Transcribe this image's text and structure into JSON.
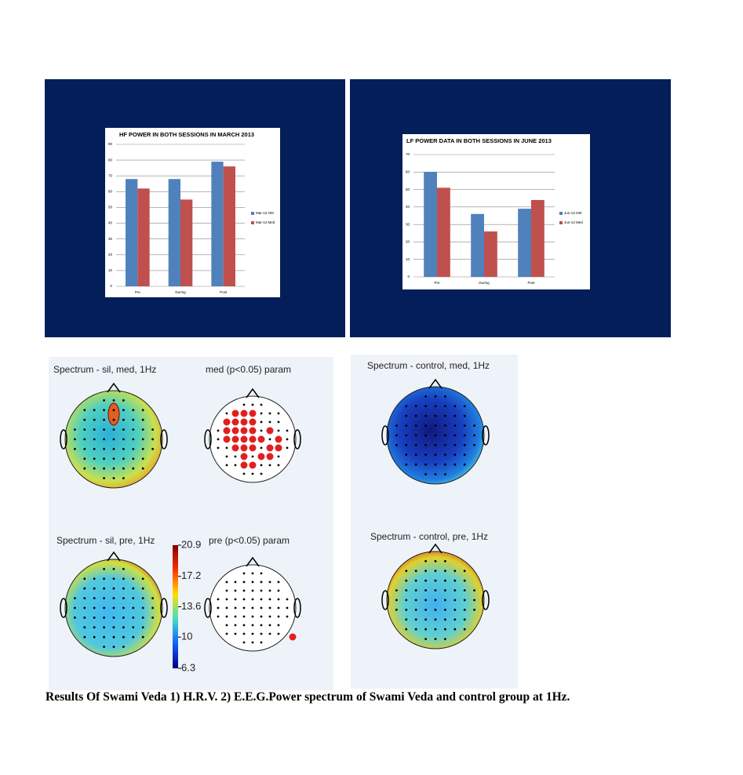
{
  "chart_data": [
    {
      "type": "bar",
      "title": "HF POWER IN BOTH SESSIONS IN MARCH 2013",
      "categories": [
        "Pre",
        "During",
        "Post"
      ],
      "series": [
        {
          "name": "Mar-13 OM",
          "color": "#4f81bd",
          "values": [
            68,
            68,
            79
          ]
        },
        {
          "name": "Mar-13 Med",
          "color": "#c0504d",
          "values": [
            62,
            55,
            76
          ]
        }
      ],
      "ylim": [
        0,
        90
      ],
      "yticks": [
        0,
        10,
        20,
        30,
        40,
        50,
        60,
        70,
        80,
        90
      ],
      "grid": true,
      "legend": "right"
    },
    {
      "type": "bar",
      "title": "LF POWER DATA IN BOTH SESSIONS IN JUNE 2013",
      "categories": [
        "Pre",
        "During",
        "Post"
      ],
      "series": [
        {
          "name": "Jun-13 OM",
          "color": "#4f81bd",
          "values": [
            60,
            36,
            39
          ]
        },
        {
          "name": "Jun-13 Med",
          "color": "#c0504d",
          "values": [
            51,
            26,
            44
          ]
        }
      ],
      "ylim": [
        0,
        70
      ],
      "yticks": [
        0,
        10,
        20,
        30,
        40,
        50,
        60,
        70
      ],
      "grid": true,
      "legend": "right"
    }
  ],
  "eeg": {
    "labels": [
      "Spectrum - sil, med, 1Hz",
      "med (p<0.05) param",
      "Spectrum - sil, pre, 1Hz",
      "pre (p<0.05) param",
      "Spectrum - control, med, 1Hz",
      "Spectrum - control, pre, 1Hz"
    ],
    "colorbar_ticks": [
      20.9,
      17.2,
      13.6,
      10,
      6.3
    ]
  },
  "caption": "Results Of Swami Veda 1) H.R.V. 2) E.E.G.Power spectrum of Swami Veda and control group at 1Hz."
}
